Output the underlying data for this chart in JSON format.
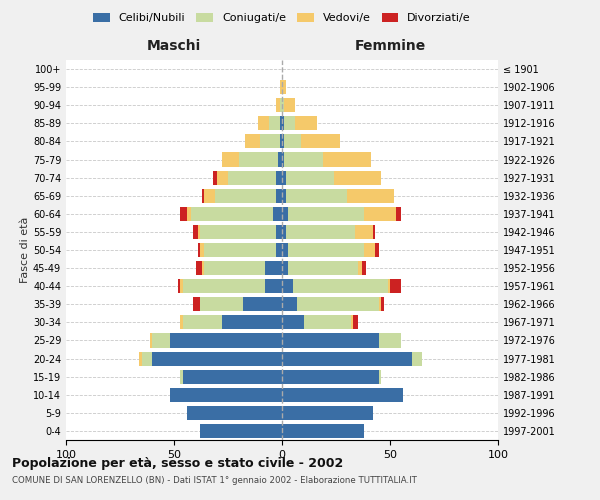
{
  "age_groups": [
    "0-4",
    "5-9",
    "10-14",
    "15-19",
    "20-24",
    "25-29",
    "30-34",
    "35-39",
    "40-44",
    "45-49",
    "50-54",
    "55-59",
    "60-64",
    "65-69",
    "70-74",
    "75-79",
    "80-84",
    "85-89",
    "90-94",
    "95-99",
    "100+"
  ],
  "birth_years": [
    "1997-2001",
    "1992-1996",
    "1987-1991",
    "1982-1986",
    "1977-1981",
    "1972-1976",
    "1967-1971",
    "1962-1966",
    "1957-1961",
    "1952-1956",
    "1947-1951",
    "1942-1946",
    "1937-1941",
    "1932-1936",
    "1927-1931",
    "1922-1926",
    "1917-1921",
    "1912-1916",
    "1907-1911",
    "1902-1906",
    "≤ 1901"
  ],
  "maschi": {
    "celibi": [
      38,
      44,
      52,
      46,
      60,
      52,
      28,
      18,
      8,
      8,
      3,
      3,
      4,
      3,
      3,
      2,
      1,
      1,
      0,
      0,
      0
    ],
    "coniugati": [
      0,
      0,
      0,
      1,
      5,
      8,
      18,
      20,
      38,
      28,
      33,
      35,
      38,
      28,
      22,
      18,
      9,
      5,
      1,
      0,
      0
    ],
    "vedovi": [
      0,
      0,
      0,
      0,
      1,
      1,
      1,
      0,
      1,
      1,
      2,
      1,
      2,
      5,
      5,
      8,
      7,
      5,
      2,
      1,
      0
    ],
    "divorziati": [
      0,
      0,
      0,
      0,
      0,
      0,
      0,
      3,
      1,
      3,
      1,
      2,
      3,
      1,
      2,
      0,
      0,
      0,
      0,
      0,
      0
    ]
  },
  "femmine": {
    "nubili": [
      38,
      42,
      56,
      45,
      60,
      45,
      10,
      7,
      5,
      3,
      3,
      2,
      3,
      2,
      2,
      1,
      1,
      1,
      0,
      0,
      0
    ],
    "coniugate": [
      0,
      0,
      0,
      1,
      5,
      10,
      22,
      38,
      44,
      32,
      35,
      32,
      35,
      28,
      22,
      18,
      8,
      5,
      1,
      0,
      0
    ],
    "vedove": [
      0,
      0,
      0,
      0,
      0,
      0,
      1,
      1,
      1,
      2,
      5,
      8,
      15,
      22,
      22,
      22,
      18,
      10,
      5,
      2,
      0
    ],
    "divorziate": [
      0,
      0,
      0,
      0,
      0,
      0,
      2,
      1,
      5,
      2,
      2,
      1,
      2,
      0,
      0,
      0,
      0,
      0,
      0,
      0,
      0
    ]
  },
  "colors": {
    "celibi_nubili": "#3a6ea5",
    "coniugati": "#c8dba0",
    "vedovi": "#f5c96a",
    "divorziati": "#cc2222"
  },
  "title": "Popolazione per età, sesso e stato civile - 2002",
  "subtitle": "COMUNE DI SAN LORENZELLO (BN) - Dati ISTAT 1° gennaio 2002 - Elaborazione TUTTITALIA.IT",
  "xlabel_left": "Maschi",
  "xlabel_right": "Femmine",
  "ylabel_left": "Fasce di età",
  "xlim": 100,
  "bg_color": "#f0f0f0",
  "plot_bg_color": "#ffffff",
  "grid_color": "#bbbbbb"
}
